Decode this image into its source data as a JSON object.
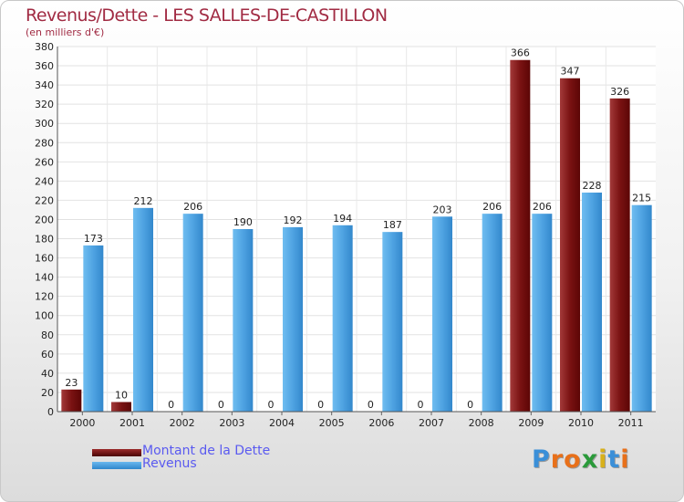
{
  "chart_data": {
    "type": "bar",
    "title": "Revenus/Dette - LES SALLES-DE-CASTILLON",
    "subtitle": "(en milliers d'€)",
    "categories": [
      "2000",
      "2001",
      "2002",
      "2003",
      "2004",
      "2005",
      "2006",
      "2007",
      "2008",
      "2009",
      "2010",
      "2011"
    ],
    "series": [
      {
        "name": "Montant de la Dette",
        "color": "#6b0d0d",
        "values": [
          23,
          10,
          0,
          0,
          0,
          0,
          0,
          0,
          0,
          366,
          347,
          326
        ]
      },
      {
        "name": "Revenus",
        "color": "#4a9de0",
        "values": [
          173,
          212,
          206,
          190,
          192,
          194,
          187,
          203,
          206,
          206,
          228,
          215
        ]
      }
    ],
    "ylim": [
      0,
      380
    ],
    "yticks": [
      0,
      20,
      40,
      60,
      80,
      100,
      120,
      140,
      160,
      180,
      200,
      220,
      240,
      260,
      280,
      300,
      320,
      340,
      360,
      380
    ],
    "grid": true,
    "legend_position": "bottom-left"
  },
  "branding": {
    "logo_letters": [
      "P",
      "r",
      "o",
      "x",
      "i",
      "t",
      "i"
    ],
    "logo_colors": [
      "#3a8fd8",
      "#e8701a",
      "#e8701a",
      "#2a9a3a",
      "#d8b01a",
      "#3a8fd8",
      "#e8701a"
    ]
  }
}
